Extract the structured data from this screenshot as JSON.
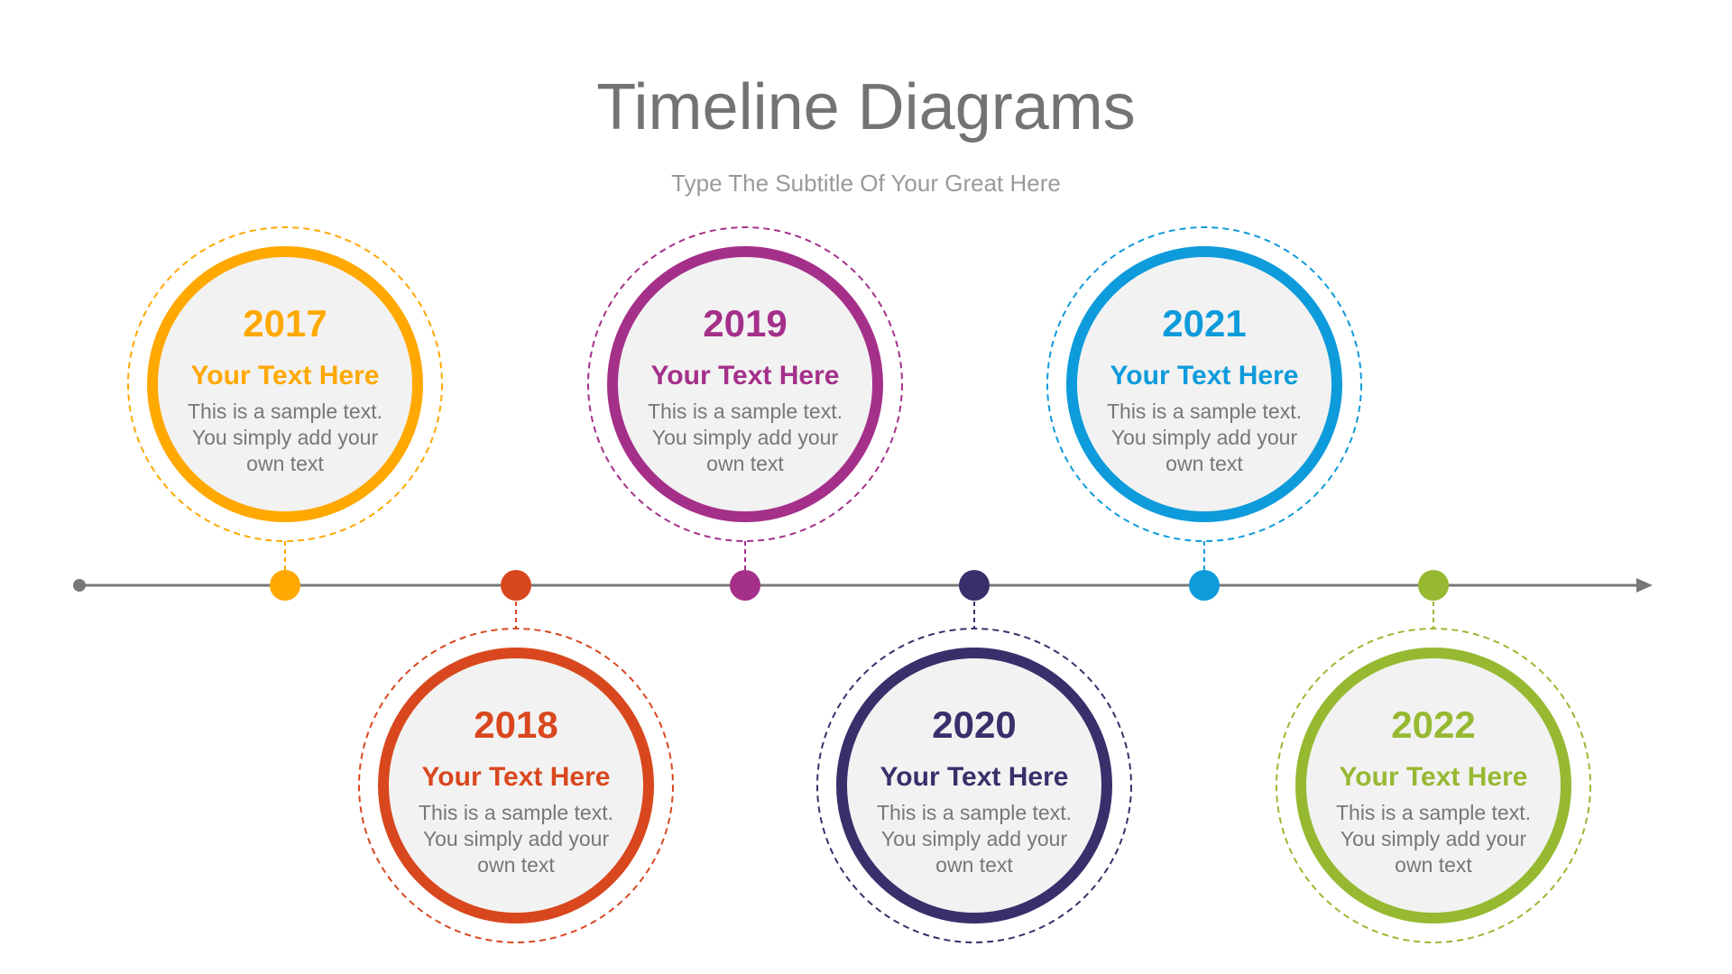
{
  "title": "Timeline Diagrams",
  "subtitle": "Type The Subtitle Of Your Great Here",
  "axis_color": "#777777",
  "milestones": [
    {
      "year": "2017",
      "heading": "Your Text Here",
      "body": [
        "This is a sample text.",
        "You simply add your",
        "own text"
      ],
      "color": "#FFA800",
      "position": "top"
    },
    {
      "year": "2018",
      "heading": "Your Text Here",
      "body": [
        "This is a sample text.",
        "You simply add your",
        "own text"
      ],
      "color": "#D9471E",
      "position": "bottom"
    },
    {
      "year": "2019",
      "heading": "Your Text Here",
      "body": [
        "This is a sample text.",
        "You simply add your",
        "own text"
      ],
      "color": "#A5308A",
      "position": "top"
    },
    {
      "year": "2020",
      "heading": "Your Text Here",
      "body": [
        "This is a sample text.",
        "You simply add your",
        "own text"
      ],
      "color": "#3A2F6B",
      "position": "bottom"
    },
    {
      "year": "2021",
      "heading": "Your Text Here",
      "body": [
        "This is a sample text.",
        "You simply add your",
        "own text"
      ],
      "color": "#0E9BDB",
      "position": "top"
    },
    {
      "year": "2022",
      "heading": "Your Text Here",
      "body": [
        "This is a sample text.",
        "You simply add your",
        "own text"
      ],
      "color": "#97B932",
      "position": "bottom"
    }
  ]
}
